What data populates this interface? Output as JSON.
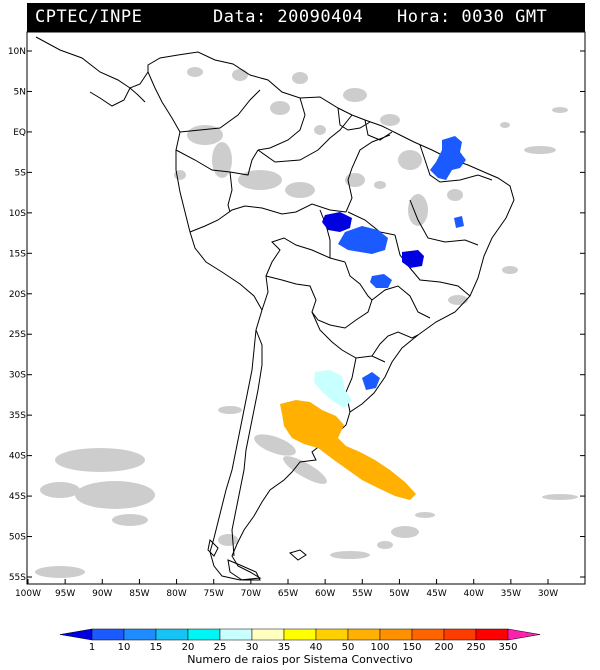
{
  "header": {
    "source": "CPTEC/INPE",
    "date_text": "Data: 20090404",
    "time_text": "Hora: 0030 GMT"
  },
  "axes": {
    "lat_labels": [
      "10N",
      "5N",
      "EQ",
      "5S",
      "10S",
      "15S",
      "20S",
      "25S",
      "30S",
      "35S",
      "40S",
      "45S",
      "50S",
      "55S"
    ],
    "lon_labels": [
      "100W",
      "95W",
      "90W",
      "85W",
      "80W",
      "75W",
      "70W",
      "65W",
      "60W",
      "55W",
      "50W",
      "45W",
      "40W",
      "35W",
      "30W"
    ]
  },
  "colorbar": {
    "title": "Numero de raios por Sistema Convectivo",
    "labels": [
      "1",
      "10",
      "15",
      "20",
      "25",
      "30",
      "35",
      "40",
      "50",
      "100",
      "150",
      "200",
      "250",
      "350"
    ],
    "colors": [
      "#0000e0",
      "#1a5aff",
      "#1e8cff",
      "#16c3f5",
      "#00f5f5",
      "#c8ffff",
      "#ffffc0",
      "#ffff00",
      "#ffd000",
      "#ffb000",
      "#ff9000",
      "#ff6400",
      "#ff3c00",
      "#ff0000",
      "#ff20b0"
    ]
  },
  "palette": {
    "land": "#ffffff",
    "clouds": "#c8c8c8",
    "borders": "#000000"
  }
}
